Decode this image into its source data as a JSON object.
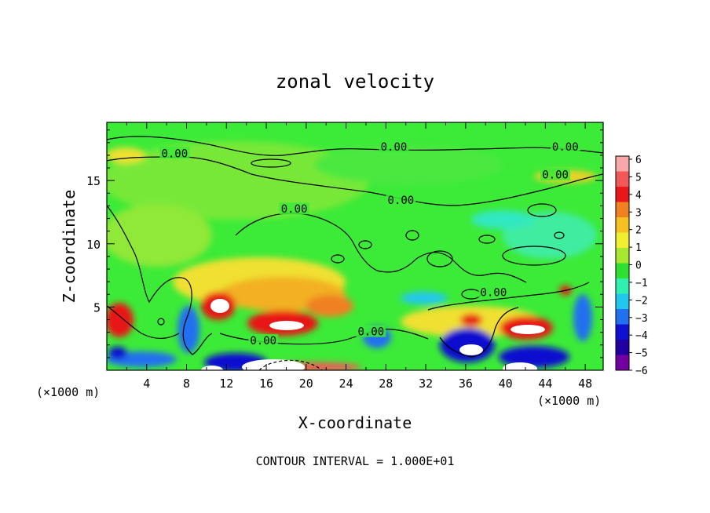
{
  "chart_data": {
    "type": "heatmap",
    "title": "zonal velocity",
    "xlabel": "X-coordinate",
    "ylabel": "Z-coordinate",
    "x_unit_left": "(×1000 m)",
    "x_unit_right": "(×1000 m)",
    "footer": "CONTOUR INTERVAL = 1.000E+01",
    "xlim": [
      0,
      49.8
    ],
    "ylim": [
      0,
      19.6
    ],
    "x_ticks": [
      "4",
      "8",
      "12",
      "16",
      "20",
      "24",
      "28",
      "32",
      "36",
      "40",
      "44",
      "48"
    ],
    "y_ticks": [
      "5",
      "10",
      "15"
    ],
    "colorbar": {
      "range": [
        -6,
        6
      ],
      "labels": [
        "6",
        "5",
        "4",
        "3",
        "2",
        "1",
        "0",
        "−1",
        "−2",
        "−3",
        "−4",
        "−5",
        "−6"
      ],
      "colors": [
        "#f7a8a8",
        "#f25858",
        "#e81818",
        "#f08020",
        "#f5c020",
        "#f0f030",
        "#a8e830",
        "#30e030",
        "#30f0b0",
        "#20c8f0",
        "#2070f0",
        "#1010d0",
        "#2000a0",
        "#7000a0"
      ]
    },
    "contour_labels": [
      {
        "text": "0.00",
        "x": 6.8,
        "y": 17.1
      },
      {
        "text": "0.00",
        "x": 28.8,
        "y": 17.6
      },
      {
        "text": "0.00",
        "x": 46.0,
        "y": 17.6
      },
      {
        "text": "0.00",
        "x": 45.0,
        "y": 15.4
      },
      {
        "text": "0.00",
        "x": 29.5,
        "y": 13.4
      },
      {
        "text": "0.00",
        "x": 18.8,
        "y": 12.7
      },
      {
        "text": "0.00",
        "x": 38.8,
        "y": 6.1
      },
      {
        "text": "0.00",
        "x": 26.5,
        "y": 3.0
      },
      {
        "text": "0.00",
        "x": 15.7,
        "y": 2.3
      }
    ]
  }
}
